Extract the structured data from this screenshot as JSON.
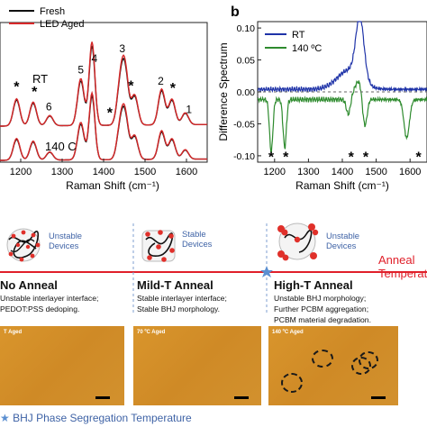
{
  "chart_data": [
    {
      "type": "line",
      "panel": "a",
      "xlabel": "Raman Shift (cm⁻¹)",
      "ylabel": "",
      "xlim": [
        1150,
        1650
      ],
      "x_ticks": [
        "1200",
        "1300",
        "1400",
        "1500",
        "1600"
      ],
      "series": [
        {
          "name": "Fresh",
          "color": "#111111"
        },
        {
          "name": "LED Aged",
          "color": "#d62728"
        }
      ],
      "groups": [
        {
          "label": "RT",
          "peaks": [
            {
              "x": 1190,
              "h": 0.32
            },
            {
              "x": 1230,
              "h": 0.28
            },
            {
              "x": 1270,
              "h": 0.12
            },
            {
              "x": 1345,
              "h": 0.55
            },
            {
              "x": 1372,
              "h": 0.98
            },
            {
              "x": 1440,
              "h": 0.45
            },
            {
              "x": 1452,
              "h": 0.62
            },
            {
              "x": 1475,
              "h": 0.35
            },
            {
              "x": 1540,
              "h": 0.42
            },
            {
              "x": 1565,
              "h": 0.3
            },
            {
              "x": 1597,
              "h": 0.14
            }
          ]
        },
        {
          "label": "140 C",
          "peaks": [
            {
              "x": 1190,
              "h": 0.32
            },
            {
              "x": 1230,
              "h": 0.28
            },
            {
              "x": 1270,
              "h": 0.12
            },
            {
              "x": 1345,
              "h": 0.55
            },
            {
              "x": 1372,
              "h": 0.98
            },
            {
              "x": 1440,
              "h": 0.45
            },
            {
              "x": 1452,
              "h": 0.62
            },
            {
              "x": 1475,
              "h": 0.35
            },
            {
              "x": 1540,
              "h": 0.42
            },
            {
              "x": 1565,
              "h": 0.3
            },
            {
              "x": 1597,
              "h": 0.14
            }
          ]
        }
      ],
      "peak_labels": [
        {
          "text": "6",
          "x": 1268,
          "group": 0
        },
        {
          "text": "5",
          "x": 1345,
          "group": 0
        },
        {
          "text": "4",
          "x": 1378,
          "group": 0
        },
        {
          "text": "3",
          "x": 1445,
          "group": 0
        },
        {
          "text": "2",
          "x": 1538,
          "group": 0
        },
        {
          "text": "1",
          "x": 1606,
          "group": 0
        }
      ],
      "stars": [
        {
          "x": 1190,
          "group": 0
        },
        {
          "x": 1233,
          "group": 0
        },
        {
          "x": 1415,
          "group": 0
        },
        {
          "x": 1466,
          "group": 0
        },
        {
          "x": 1567,
          "group": 0
        }
      ]
    },
    {
      "type": "line",
      "panel": "b",
      "xlabel": "Raman Shift (cm⁻¹)",
      "ylabel": "Difference Spectrum",
      "xlim": [
        1150,
        1650
      ],
      "ylim": [
        -0.11,
        0.11
      ],
      "x_ticks": [
        "1200",
        "1300",
        "1400",
        "1500",
        "1600"
      ],
      "y_ticks": [
        "0.10",
        "0.05",
        "0.00",
        "-0.05",
        "-0.10"
      ],
      "series": [
        {
          "name": "RT",
          "color": "#1f33a8"
        },
        {
          "name": "140 ºC",
          "color": "#2e8b2e"
        }
      ],
      "features": [
        {
          "series": 0,
          "x": 1452,
          "amp": 0.095,
          "w": 12
        },
        {
          "series": 0,
          "x": 1420,
          "amp": 0.03,
          "w": 35
        },
        {
          "series": 1,
          "x": 1190,
          "amp": -0.082,
          "w": 5
        },
        {
          "series": 1,
          "x": 1230,
          "amp": -0.075,
          "w": 5
        },
        {
          "series": 1,
          "x": 1418,
          "amp": -0.025,
          "w": 6
        },
        {
          "series": 1,
          "x": 1466,
          "amp": -0.055,
          "w": 7
        },
        {
          "series": 1,
          "x": 1450,
          "amp": 0.03,
          "w": 14
        },
        {
          "series": 1,
          "x": 1590,
          "amp": -0.06,
          "w": 8
        }
      ],
      "stars": [
        1190,
        1233,
        1426,
        1469,
        1625
      ]
    }
  ],
  "panel_b_letter": "b",
  "stages": [
    {
      "status": "Unstable\nDevices",
      "title": "No Anneal",
      "desc": [
        "Unstable interlayer interface;",
        "PEDOT:PSS dedoping."
      ],
      "photo_label": "T Aged"
    },
    {
      "status": "Stable\nDevices",
      "title": "Mild-T Anneal",
      "desc": [
        "Stable interlayer interface;",
        "Stable BHJ morphology."
      ],
      "photo_label": "70 ºC Aged"
    },
    {
      "status": "Unstable\nDevices",
      "title": "High-T Anneal",
      "desc": [
        "Unstable BHJ morphology;",
        "Further PCBM aggregation;",
        "PCBM material degradation."
      ],
      "photo_label": "140 ºC Aged"
    }
  ],
  "axis_label": "Anneal\nTemperature",
  "footer": "BHJ Phase Segregation Temperature",
  "colors": {
    "timeline": "#e0202a",
    "star_marker": "#5b8fd1",
    "photo": "#d48f2a",
    "status": "#3f63a6"
  }
}
